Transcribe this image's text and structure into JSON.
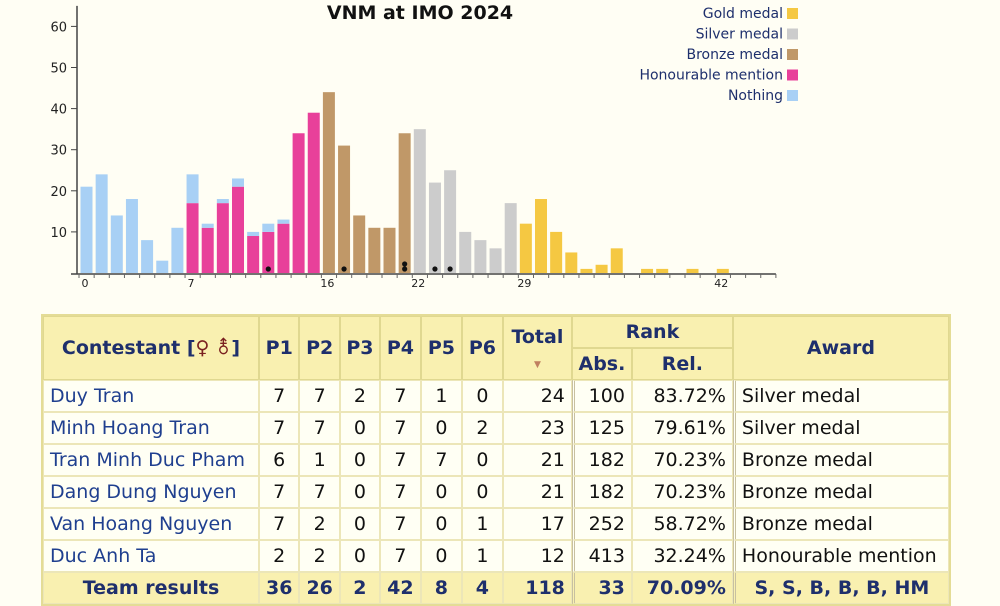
{
  "chart_data": {
    "type": "bar",
    "title": "VNM at IMO 2024",
    "xlabel": "",
    "ylabel": "",
    "ylim": [
      0,
      65
    ],
    "yticks": [
      10,
      20,
      30,
      40,
      50,
      60
    ],
    "xlim": [
      0,
      46
    ],
    "xticks": [
      0,
      7,
      16,
      22,
      29,
      42
    ],
    "legend_position": "top-right",
    "legend": [
      {
        "label": "Gold medal",
        "color": "#f5c842"
      },
      {
        "label": "Silver medal",
        "color": "#cccccc"
      },
      {
        "label": "Bronze medal",
        "color": "#c09868"
      },
      {
        "label": "Honourable mention",
        "color": "#e8409a"
      },
      {
        "label": "Nothing",
        "color": "#a8d0f5"
      }
    ],
    "bars": [
      {
        "x": 0,
        "hm": 0,
        "nothing": 21,
        "class": "nothing"
      },
      {
        "x": 1,
        "hm": 0,
        "nothing": 24,
        "class": "nothing"
      },
      {
        "x": 2,
        "hm": 0,
        "nothing": 14,
        "class": "nothing"
      },
      {
        "x": 3,
        "hm": 0,
        "nothing": 18,
        "class": "nothing"
      },
      {
        "x": 4,
        "hm": 0,
        "nothing": 8,
        "class": "nothing"
      },
      {
        "x": 5,
        "hm": 0,
        "nothing": 3,
        "class": "nothing"
      },
      {
        "x": 6,
        "hm": 0,
        "nothing": 11,
        "class": "nothing"
      },
      {
        "x": 7,
        "hm": 17,
        "nothing": 7,
        "class": "hm"
      },
      {
        "x": 8,
        "hm": 11,
        "nothing": 1,
        "class": "hm"
      },
      {
        "x": 9,
        "hm": 17,
        "nothing": 1,
        "class": "hm"
      },
      {
        "x": 10,
        "hm": 21,
        "nothing": 2,
        "class": "hm"
      },
      {
        "x": 11,
        "hm": 9,
        "nothing": 1,
        "class": "hm"
      },
      {
        "x": 12,
        "hm": 10,
        "nothing": 2,
        "class": "hm"
      },
      {
        "x": 13,
        "hm": 12,
        "nothing": 1,
        "class": "hm"
      },
      {
        "x": 14,
        "value": 34,
        "class": "hm"
      },
      {
        "x": 15,
        "value": 39,
        "class": "hm"
      },
      {
        "x": 16,
        "value": 44,
        "class": "bronze"
      },
      {
        "x": 17,
        "value": 31,
        "class": "bronze"
      },
      {
        "x": 18,
        "value": 14,
        "class": "bronze"
      },
      {
        "x": 19,
        "value": 11,
        "class": "bronze"
      },
      {
        "x": 20,
        "value": 11,
        "class": "bronze"
      },
      {
        "x": 21,
        "value": 34,
        "class": "bronze"
      },
      {
        "x": 22,
        "value": 35,
        "class": "silver"
      },
      {
        "x": 23,
        "value": 22,
        "class": "silver"
      },
      {
        "x": 24,
        "value": 25,
        "class": "silver"
      },
      {
        "x": 25,
        "value": 10,
        "class": "silver"
      },
      {
        "x": 26,
        "value": 8,
        "class": "silver"
      },
      {
        "x": 27,
        "value": 6,
        "class": "silver"
      },
      {
        "x": 28,
        "value": 17,
        "class": "silver"
      },
      {
        "x": 29,
        "value": 12,
        "class": "gold"
      },
      {
        "x": 30,
        "value": 18,
        "class": "gold"
      },
      {
        "x": 31,
        "value": 10,
        "class": "gold"
      },
      {
        "x": 32,
        "value": 5,
        "class": "gold"
      },
      {
        "x": 33,
        "value": 1,
        "class": "gold"
      },
      {
        "x": 34,
        "value": 2,
        "class": "gold"
      },
      {
        "x": 35,
        "value": 6,
        "class": "gold"
      },
      {
        "x": 37,
        "value": 1,
        "class": "gold"
      },
      {
        "x": 38,
        "value": 1,
        "class": "gold"
      },
      {
        "x": 40,
        "value": 1,
        "class": "gold"
      },
      {
        "x": 42,
        "value": 1,
        "class": "gold"
      }
    ],
    "contestant_markers": [
      12,
      17,
      21,
      21,
      23,
      24
    ]
  },
  "table": {
    "headers": {
      "contestant": "Contestant",
      "symbols": "♀ ⚨",
      "p1": "P1",
      "p2": "P2",
      "p3": "P3",
      "p4": "P4",
      "p5": "P5",
      "p6": "P6",
      "total": "Total",
      "rank": "Rank",
      "abs": "Abs.",
      "rel": "Rel.",
      "award": "Award"
    },
    "rows": [
      {
        "name": "Duy Tran",
        "p": [
          "7",
          "7",
          "2",
          "7",
          "1",
          "0"
        ],
        "total": "24",
        "abs": "100",
        "rel": "83.72%",
        "award": "Silver medal"
      },
      {
        "name": "Minh Hoang Tran",
        "p": [
          "7",
          "7",
          "0",
          "7",
          "0",
          "2"
        ],
        "total": "23",
        "abs": "125",
        "rel": "79.61%",
        "award": "Silver medal"
      },
      {
        "name": "Tran Minh Duc Pham",
        "p": [
          "6",
          "1",
          "0",
          "7",
          "7",
          "0"
        ],
        "total": "21",
        "abs": "182",
        "rel": "70.23%",
        "award": "Bronze medal"
      },
      {
        "name": "Dang Dung Nguyen",
        "p": [
          "7",
          "7",
          "0",
          "7",
          "0",
          "0"
        ],
        "total": "21",
        "abs": "182",
        "rel": "70.23%",
        "award": "Bronze medal"
      },
      {
        "name": "Van Hoang Nguyen",
        "p": [
          "7",
          "2",
          "0",
          "7",
          "0",
          "1"
        ],
        "total": "17",
        "abs": "252",
        "rel": "58.72%",
        "award": "Bronze medal"
      },
      {
        "name": "Duc Anh Ta",
        "p": [
          "2",
          "2",
          "0",
          "7",
          "0",
          "1"
        ],
        "total": "12",
        "abs": "413",
        "rel": "32.24%",
        "award": "Honourable mention"
      }
    ],
    "team": {
      "label": "Team results",
      "p": [
        "36",
        "26",
        "2",
        "42",
        "8",
        "4"
      ],
      "total": "118",
      "abs": "33",
      "rel": "70.09%",
      "award": "S, S, B, B, B, HM"
    }
  }
}
